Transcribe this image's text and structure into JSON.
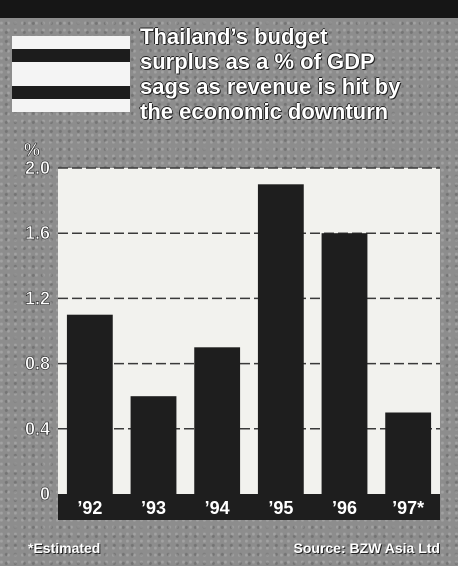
{
  "colors": {
    "background": "#8d8d8d",
    "plot_area": "#f2f2ee",
    "bar": "#1e1e1e",
    "gridline": "#3a3a3a",
    "flag_light": "#f4f4f4",
    "flag_dark": "#1c1c1c"
  },
  "footnote": "*Estimated",
  "source": "Source: BZW Asia Ltd",
  "chart_data": {
    "type": "bar",
    "title": "Thailand’s budget surplus as a % of GDP sags as revenue is hit by the economic downturn",
    "title_lines": [
      "Thailand’s budget",
      "surplus as a % of GDP",
      "sags as revenue is hit by",
      "the economic downturn"
    ],
    "ylabel": "%",
    "categories": [
      "’92",
      "’93",
      "’94",
      "’95",
      "’96",
      "’97*"
    ],
    "values": [
      1.1,
      0.6,
      0.9,
      1.9,
      1.6,
      0.5
    ],
    "ylim": [
      0,
      2.0
    ],
    "yticks": [
      "0",
      "0.4",
      "0.8",
      "1.2",
      "1.6",
      "2.0"
    ],
    "ytick_values": [
      0,
      0.4,
      0.8,
      1.2,
      1.6,
      2.0
    ],
    "grid": true
  }
}
